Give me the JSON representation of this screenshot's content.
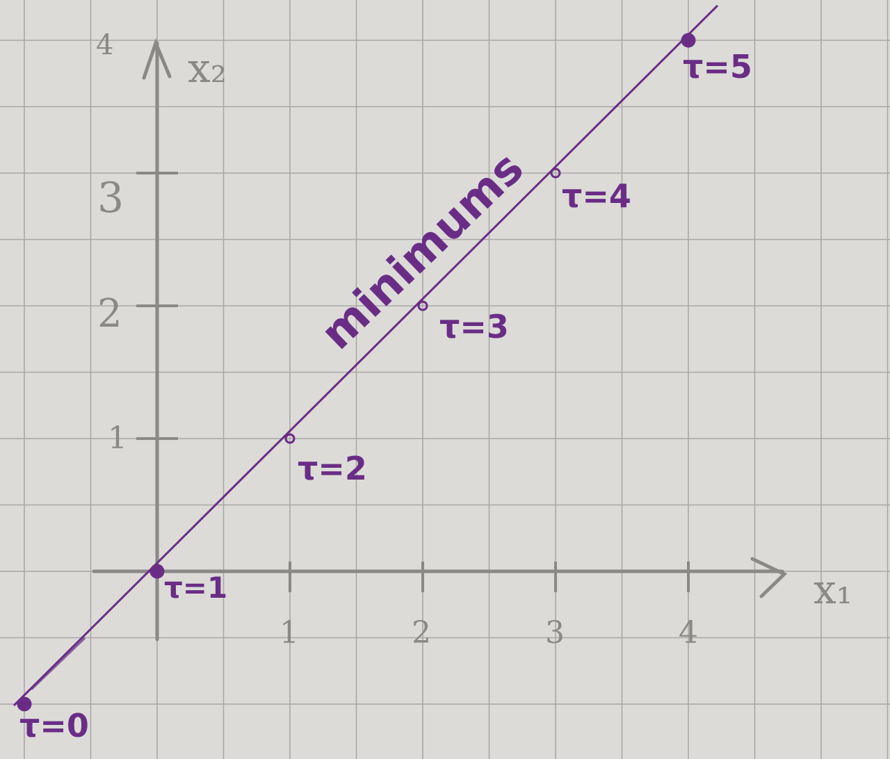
{
  "axes": {
    "x_label": "x₁",
    "y_label": "x₂",
    "x_ticks": [
      "1",
      "2",
      "3",
      "4"
    ],
    "y_ticks": [
      "1",
      "2",
      "3"
    ],
    "y_top_mark": "4"
  },
  "line_label": "minimums",
  "points": [
    {
      "label": "τ=0",
      "x": -1,
      "y": -1
    },
    {
      "label": "τ=1",
      "x": 0,
      "y": 0
    },
    {
      "label": "τ=2",
      "x": 1,
      "y": 1
    },
    {
      "label": "τ=3",
      "x": 2,
      "y": 2
    },
    {
      "label": "τ=4",
      "x": 3,
      "y": 3
    },
    {
      "label": "τ=5",
      "x": 4,
      "y": 4
    }
  ],
  "colors": {
    "paper": "#dcdbd8",
    "grid": "#a9a8a6",
    "pencil": "#8a8987",
    "ink": "#6a2d86"
  }
}
